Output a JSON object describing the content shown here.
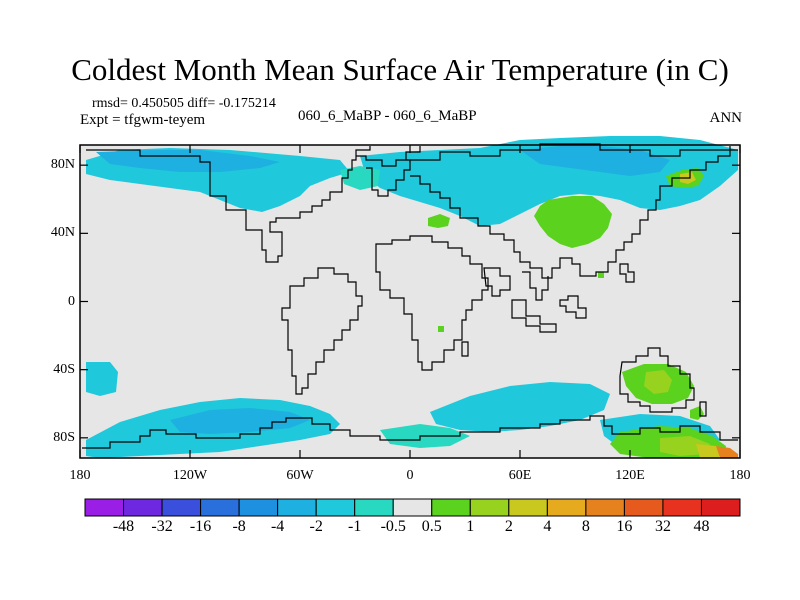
{
  "title": "Coldest Month Mean Surface Air Temperature (in C)",
  "stats_line": "rmsd= 0.450505 diff= -0.175214",
  "expt_line": "Expt = tfgwm-teyem",
  "case_line": "060_6_MaBP - 060_6_MaBP",
  "season": "ANN",
  "y_axis_labels": [
    {
      "value": 80,
      "text": "80N"
    },
    {
      "value": 40,
      "text": "40N"
    },
    {
      "value": 0,
      "text": "0"
    },
    {
      "value": -40,
      "text": "40S"
    },
    {
      "value": -80,
      "text": "80S"
    }
  ],
  "x_axis_labels": [
    {
      "value": -180,
      "text": "180"
    },
    {
      "value": -120,
      "text": "120W"
    },
    {
      "value": -60,
      "text": "60W"
    },
    {
      "value": 0,
      "text": "0"
    },
    {
      "value": 60,
      "text": "60E"
    },
    {
      "value": 120,
      "text": "120E"
    },
    {
      "value": 180,
      "text": "180"
    }
  ],
  "colorbar": {
    "labels": [
      "-48",
      "-32",
      "-16",
      "-8",
      "-4",
      "-2",
      "-1",
      "-0.5",
      "0.5",
      "1",
      "2",
      "4",
      "8",
      "16",
      "32",
      "48"
    ],
    "colors": [
      "#9a1ee6",
      "#6e28e0",
      "#3a50dc",
      "#2a70dc",
      "#1e90e0",
      "#1eb0e0",
      "#20c8dc",
      "#28d8c0",
      "#e6e6e6",
      "#5ad21e",
      "#96d21e",
      "#c8c81e",
      "#e6aa1e",
      "#e6821e",
      "#e65a1e",
      "#e6321e",
      "#dc1e1e"
    ]
  },
  "field_colors": {
    "background": "#e6e6e6",
    "neg_light": "#28d8c0",
    "neg_mid": "#20c8dc",
    "neg_dark": "#1eb0e0",
    "pos_light": "#5ad21e",
    "pos_mid": "#96d21e",
    "pos_warm": "#c8c81e",
    "pos_orange": "#e6821e"
  }
}
